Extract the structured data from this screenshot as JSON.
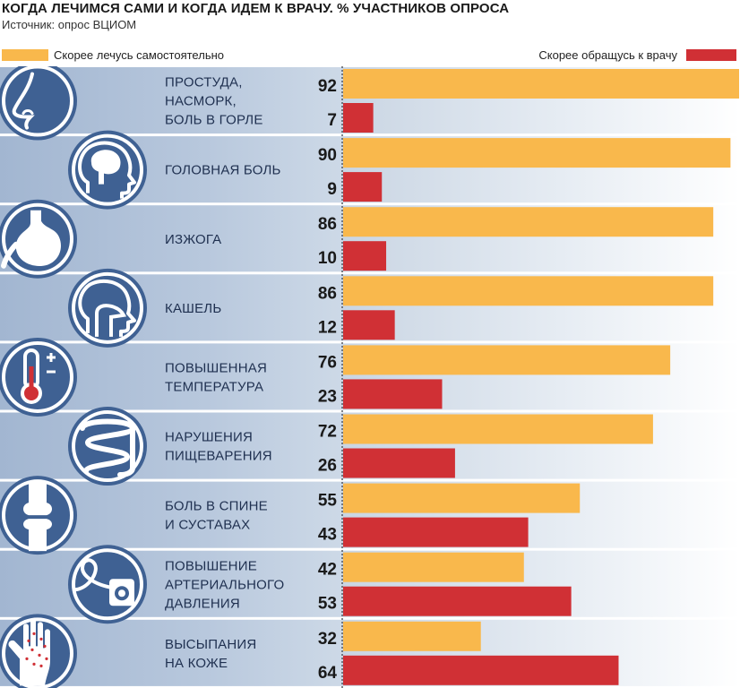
{
  "header": {
    "title": "КОГДА ЛЕЧИМСЯ САМИ И КОГДА ИДЕМ К ВРАЧУ. % УЧАСТНИКОВ ОПРОСА",
    "source": "Источник: опрос ВЦИОМ"
  },
  "colors": {
    "self": "#f9b84c",
    "doctor": "#d03035",
    "icon_circle": "#3f6193",
    "band": "#a9bdd6"
  },
  "chart_data": {
    "type": "bar",
    "orientation": "horizontal",
    "title": "КОГДА ЛЕЧИМСЯ САМИ И КОГДА ИДЕМ К ВРАЧУ. % УЧАСТНИКОВ ОПРОСА",
    "xlim": [
      0,
      92
    ],
    "legend_position": "top",
    "series": [
      {
        "name": "Скорее лечусь самостоятельно",
        "values": [
          92,
          90,
          86,
          86,
          76,
          72,
          55,
          42,
          32
        ]
      },
      {
        "name": "Скорее обращусь к врачу",
        "values": [
          7,
          9,
          10,
          12,
          23,
          26,
          43,
          53,
          64
        ]
      }
    ],
    "categories": [
      {
        "label_lines": [
          "ПРОСТУДА,",
          "НАСМОРК,",
          "БОЛЬ В ГОРЛЕ"
        ],
        "icon": "nose-icon"
      },
      {
        "label_lines": [
          "ГОЛОВНАЯ БОЛЬ"
        ],
        "icon": "head-brain-icon"
      },
      {
        "label_lines": [
          "ИЗЖОГА"
        ],
        "icon": "stomach-icon"
      },
      {
        "label_lines": [
          "КАШЕЛЬ"
        ],
        "icon": "head-throat-icon"
      },
      {
        "label_lines": [
          "ПОВЫШЕННАЯ",
          "ТЕМПЕРАТУРА"
        ],
        "icon": "thermometer-icon"
      },
      {
        "label_lines": [
          "НАРУШЕНИЯ",
          "ПИЩЕВАРЕНИЯ"
        ],
        "icon": "intestine-icon"
      },
      {
        "label_lines": [
          "БОЛЬ В СПИНЕ",
          "И СУСТАВАХ"
        ],
        "icon": "joint-bone-icon"
      },
      {
        "label_lines": [
          "ПОВЫШЕНИЕ",
          "АРТЕРИАЛЬНОГО",
          "ДАВЛЕНИЯ"
        ],
        "icon": "blood-pressure-monitor-icon"
      },
      {
        "label_lines": [
          "ВЫСЫПАНИЯ",
          "НА КОЖЕ"
        ],
        "icon": "hand-rash-icon"
      }
    ]
  }
}
